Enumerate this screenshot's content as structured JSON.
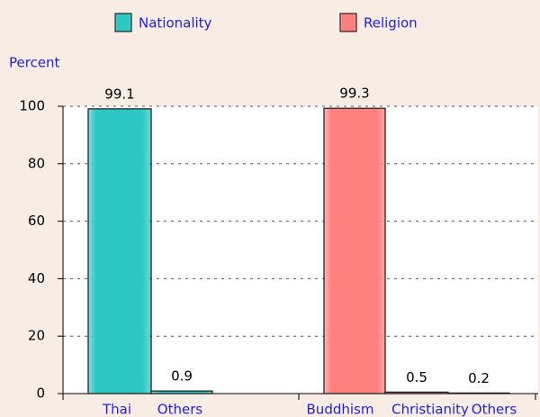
{
  "chart_data": {
    "type": "bar",
    "y_label": "Percent",
    "categories": [
      "Thai",
      "Others",
      "Buddhism",
      "Christianity",
      "Others"
    ],
    "series": [
      {
        "name": "Nationality",
        "color": "#2ec8c4",
        "values": [
          99.1,
          0.9,
          null,
          null,
          null
        ]
      },
      {
        "name": "Religion",
        "color": "#ff7f7f",
        "values": [
          null,
          null,
          99.3,
          0.5,
          0.2
        ]
      }
    ],
    "ylim": [
      0,
      100
    ],
    "yticks": [
      0,
      20,
      40,
      60,
      80,
      100
    ],
    "grid": true
  }
}
